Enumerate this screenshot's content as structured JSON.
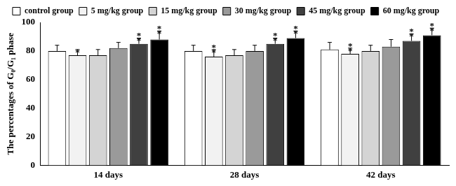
{
  "chart_data": {
    "type": "bar",
    "y_label": "The percentages of G₀/G₁ phase",
    "categories": [
      "14 days",
      "28 days",
      "42 days"
    ],
    "ylim": [
      0,
      100
    ],
    "yticks": [
      0,
      20,
      40,
      60,
      80,
      100
    ],
    "grid": false,
    "legend": "top",
    "series": [
      {
        "name": "control group",
        "color": "#ffffff",
        "values": [
          80,
          80,
          81
        ],
        "errors": [
          4,
          4,
          5
        ],
        "annotations": [
          null,
          null,
          null
        ]
      },
      {
        "name": "5 mg/kg group",
        "color": "#f2f2f2",
        "values": [
          77,
          76,
          78
        ],
        "errors": [
          4,
          5,
          4
        ],
        "annotations": [
          "*",
          "**",
          "**"
        ]
      },
      {
        "name": "15 mg/kg group",
        "color": "#d4d4d4",
        "values": [
          77,
          77,
          80
        ],
        "errors": [
          4,
          4,
          4
        ],
        "annotations": [
          null,
          null,
          null
        ]
      },
      {
        "name": "30 mg/kg group",
        "color": "#9a9a9a",
        "values": [
          82,
          80,
          83
        ],
        "errors": [
          4,
          4,
          5
        ],
        "annotations": [
          null,
          null,
          null
        ]
      },
      {
        "name": "45 mg/kg group",
        "color": "#404040",
        "values": [
          85,
          85,
          87
        ],
        "errors": [
          4,
          4,
          5
        ],
        "annotations": [
          "**",
          "**",
          "**"
        ]
      },
      {
        "name": "60 mg/kg group",
        "color": "#000000",
        "values": [
          88,
          89,
          91
        ],
        "errors": [
          6,
          5,
          5
        ],
        "annotations": [
          "**",
          "**",
          "**"
        ]
      }
    ]
  }
}
